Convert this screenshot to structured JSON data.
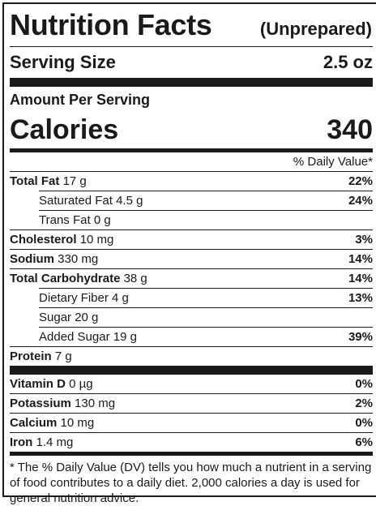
{
  "header": {
    "title": "Nutrition Facts",
    "subtitle": "(Unprepared)"
  },
  "serving": {
    "label": "Serving Size",
    "value": "2.5 oz"
  },
  "amount_per_serving": "Amount Per Serving",
  "calories": {
    "label": "Calories",
    "value": "340"
  },
  "daily_value_header": "% Daily Value*",
  "nutrients": [
    {
      "name": "Total Fat",
      "amount": "17 g",
      "dv": "22%"
    },
    {
      "name": "Saturated Fat",
      "amount": "4.5 g",
      "dv": "24%"
    },
    {
      "name": "Trans Fat",
      "amount": "0 g",
      "dv": ""
    },
    {
      "name": "Cholesterol",
      "amount": "10 mg",
      "dv": "3%"
    },
    {
      "name": "Sodium",
      "amount": "330 mg",
      "dv": "14%"
    },
    {
      "name": "Total Carbohydrate",
      "amount": "38 g",
      "dv": "14%"
    },
    {
      "name": "Dietary Fiber",
      "amount": "4 g",
      "dv": "13%"
    },
    {
      "name": "Sugar",
      "amount": "20 g",
      "dv": ""
    },
    {
      "name": "Added Sugar",
      "amount": "19 g",
      "dv": "39%"
    },
    {
      "name": "Protein",
      "amount": "7 g",
      "dv": ""
    }
  ],
  "vitamins": [
    {
      "name": "Vitamin D",
      "amount": "0 µg",
      "dv": "0%"
    },
    {
      "name": "Potassium",
      "amount": "130 mg",
      "dv": "2%"
    },
    {
      "name": "Calcium",
      "amount": "10 mg",
      "dv": "0%"
    },
    {
      "name": "Iron",
      "amount": "1.4 mg",
      "dv": "6%"
    }
  ],
  "footnote": "* The % Daily Value (DV) tells you how much a nutrient in a serving of food contributes to a daily diet. 2,000 calories a day is used for general nutrition advice."
}
